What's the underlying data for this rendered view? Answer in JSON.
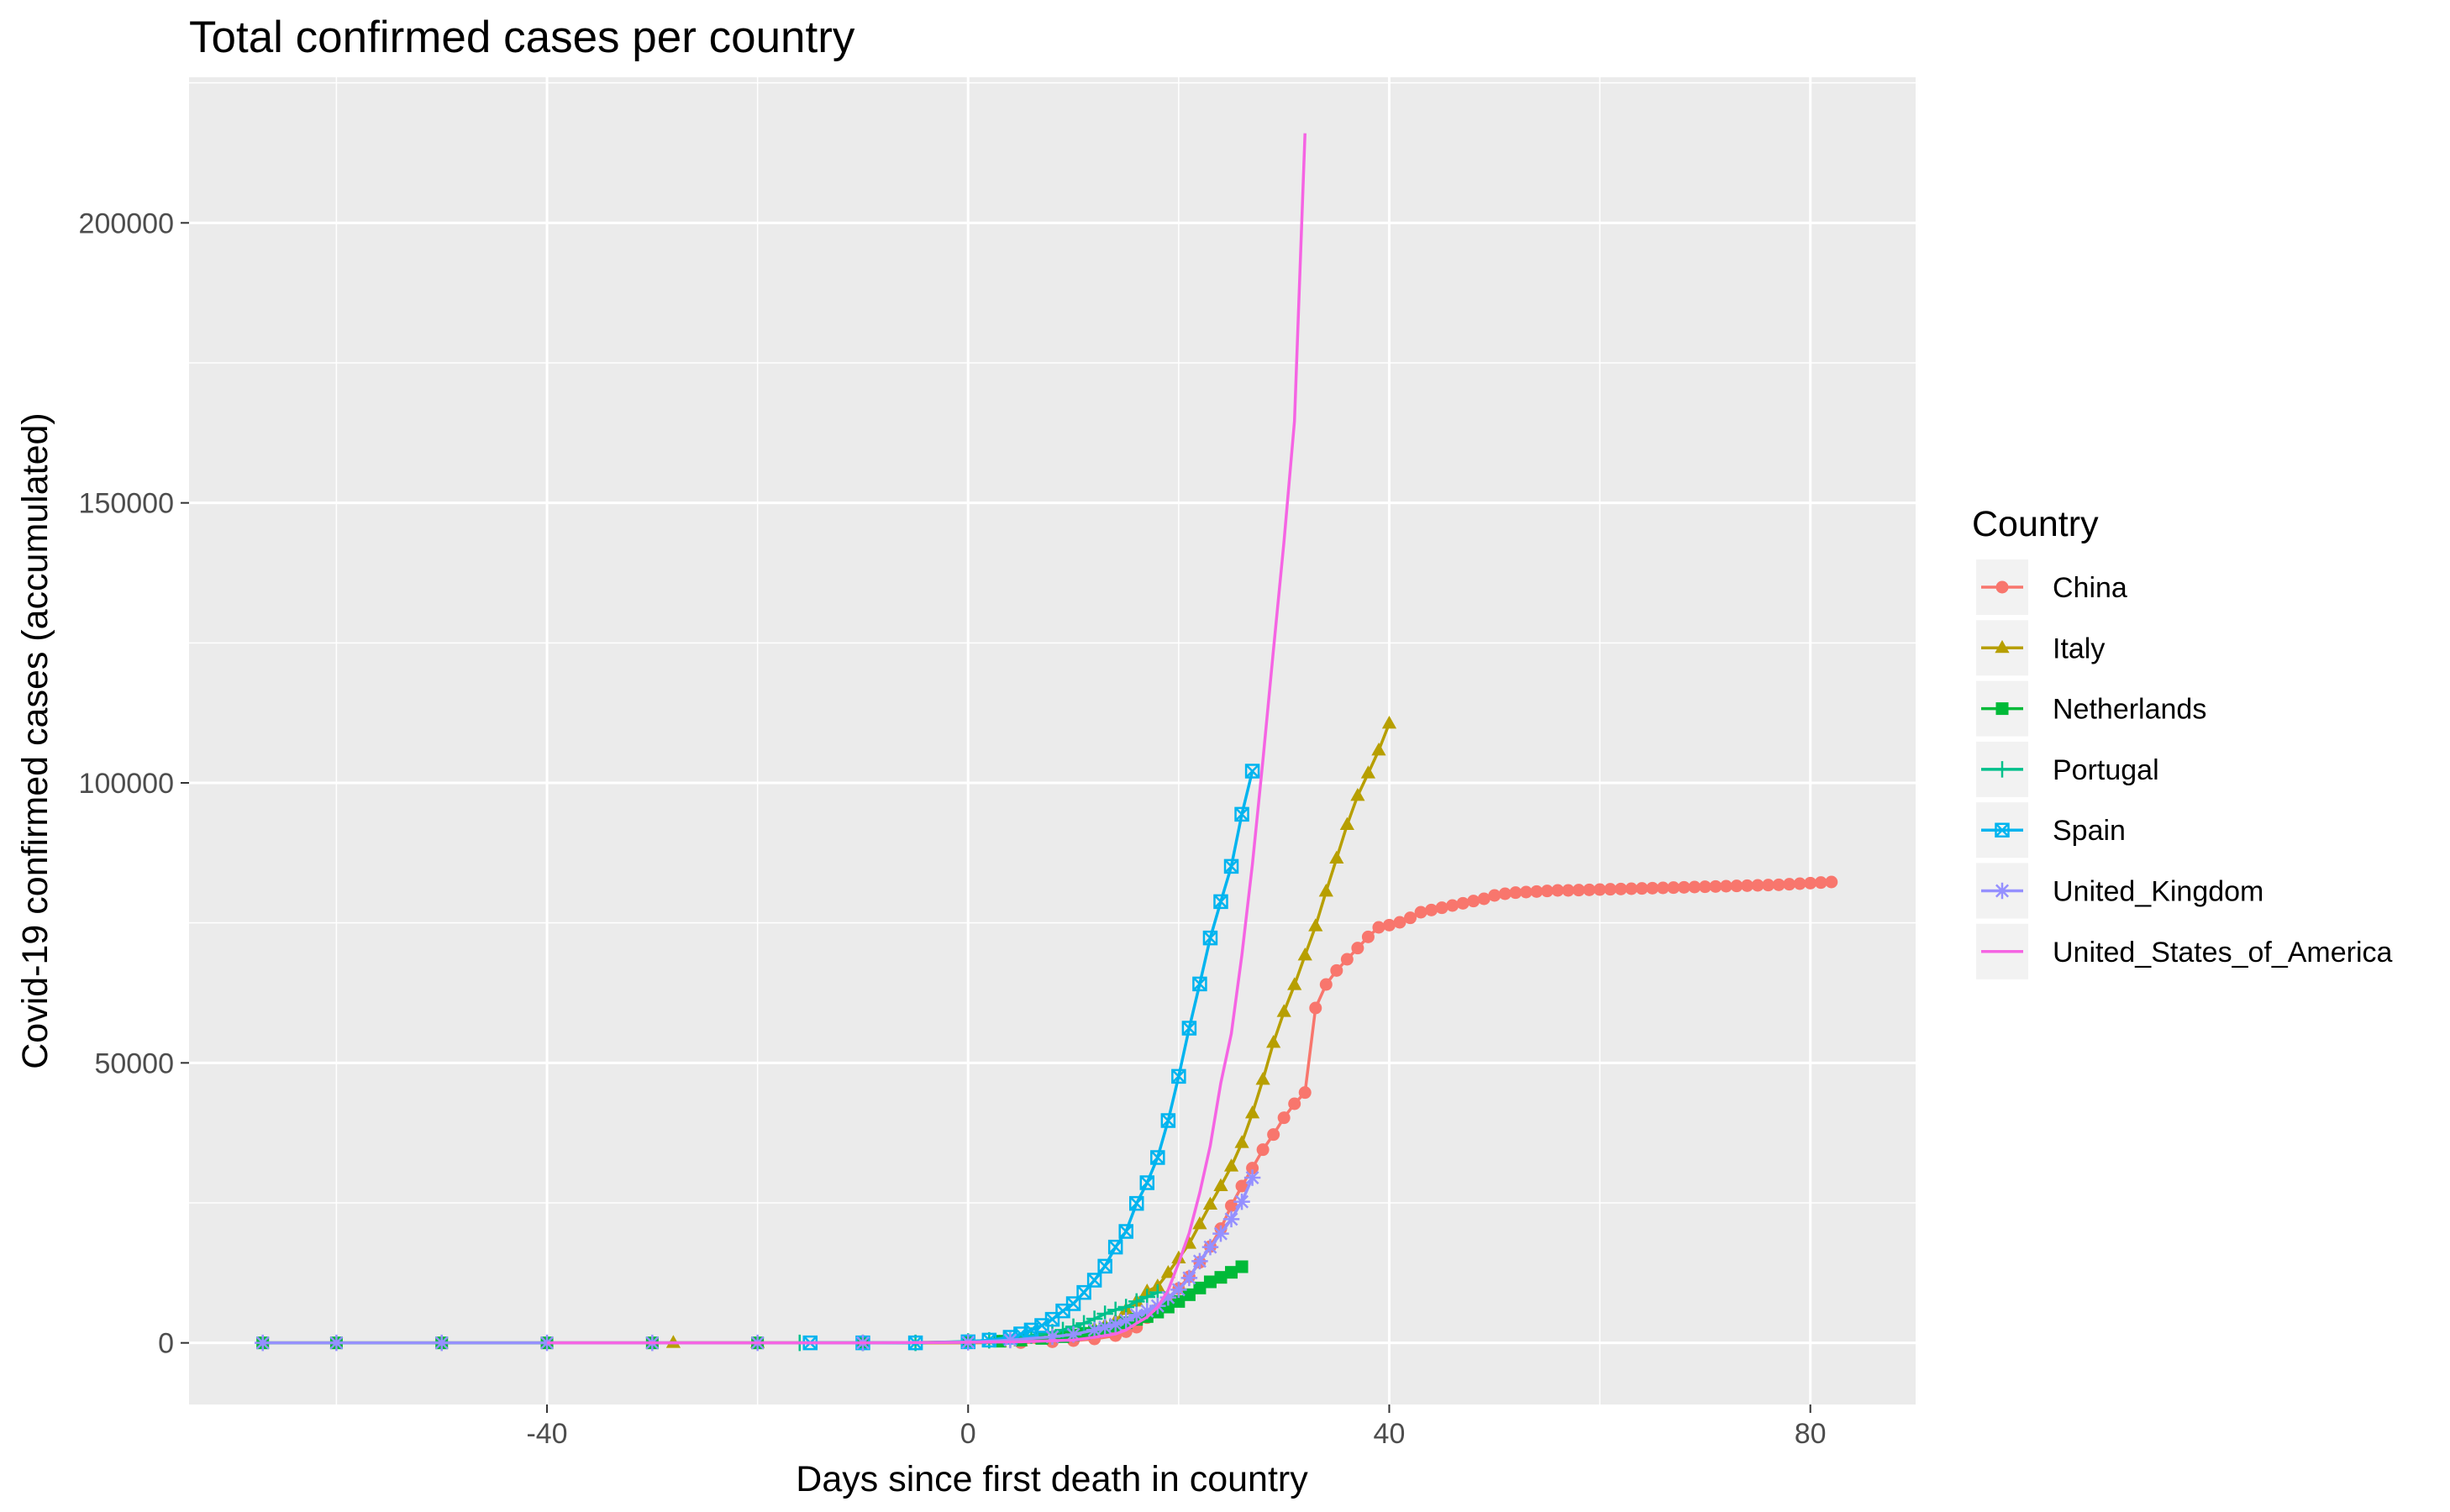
{
  "chart_data": {
    "type": "line",
    "title": "Total confirmed cases per country",
    "xlabel": "Days since first death in country",
    "ylabel": "Covid-19 confirmed cases (accumulated)",
    "xlim": [
      -74,
      90
    ],
    "ylim": [
      -11000,
      226000
    ],
    "x_ticks": [
      -40,
      0,
      40,
      80
    ],
    "y_ticks": [
      0,
      50000,
      100000,
      150000,
      200000
    ],
    "x_tick_labels": [
      "-40",
      "0",
      "40",
      "80"
    ],
    "y_tick_labels": [
      "0",
      "50000",
      "100000",
      "150000",
      "200000"
    ],
    "grid": true,
    "legend": {
      "title": "Country",
      "position": "right"
    },
    "series": [
      {
        "name": "China",
        "color": "#F8766D",
        "marker": "circle",
        "points": [
          [
            -67,
            0
          ],
          [
            -60,
            0
          ],
          [
            -50,
            0
          ],
          [
            -40,
            0
          ],
          [
            -30,
            0
          ],
          [
            -20,
            0
          ],
          [
            -10,
            0
          ],
          [
            0,
            1
          ],
          [
            5,
            50
          ],
          [
            8,
            200
          ],
          [
            10,
            400
          ],
          [
            12,
            700
          ],
          [
            14,
            1300
          ],
          [
            15,
            2000
          ],
          [
            16,
            2800
          ],
          [
            17,
            4500
          ],
          [
            18,
            6000
          ],
          [
            19,
            7700
          ],
          [
            20,
            9700
          ],
          [
            21,
            11800
          ],
          [
            22,
            14400
          ],
          [
            23,
            17200
          ],
          [
            24,
            20400
          ],
          [
            25,
            24500
          ],
          [
            26,
            28000
          ],
          [
            27,
            31200
          ],
          [
            28,
            34500
          ],
          [
            29,
            37200
          ],
          [
            30,
            40200
          ],
          [
            31,
            42700
          ],
          [
            32,
            44700
          ],
          [
            33,
            59800
          ],
          [
            34,
            64000
          ],
          [
            35,
            66500
          ],
          [
            36,
            68500
          ],
          [
            37,
            70500
          ],
          [
            38,
            72500
          ],
          [
            39,
            74200
          ],
          [
            40,
            74600
          ],
          [
            41,
            75100
          ],
          [
            42,
            75900
          ],
          [
            43,
            76900
          ],
          [
            44,
            77300
          ],
          [
            45,
            77700
          ],
          [
            46,
            78100
          ],
          [
            47,
            78500
          ],
          [
            48,
            78900
          ],
          [
            49,
            79300
          ],
          [
            50,
            79900
          ],
          [
            51,
            80200
          ],
          [
            52,
            80400
          ],
          [
            53,
            80500
          ],
          [
            54,
            80600
          ],
          [
            55,
            80700
          ],
          [
            56,
            80800
          ],
          [
            57,
            80800
          ],
          [
            58,
            80850
          ],
          [
            59,
            80900
          ],
          [
            60,
            80950
          ],
          [
            61,
            81000
          ],
          [
            62,
            81050
          ],
          [
            63,
            81100
          ],
          [
            64,
            81150
          ],
          [
            65,
            81200
          ],
          [
            66,
            81250
          ],
          [
            67,
            81300
          ],
          [
            68,
            81350
          ],
          [
            69,
            81400
          ],
          [
            70,
            81450
          ],
          [
            71,
            81500
          ],
          [
            72,
            81550
          ],
          [
            73,
            81600
          ],
          [
            74,
            81650
          ],
          [
            75,
            81700
          ],
          [
            76,
            81750
          ],
          [
            77,
            81800
          ],
          [
            78,
            81900
          ],
          [
            79,
            82000
          ],
          [
            80,
            82100
          ],
          [
            81,
            82200
          ],
          [
            82,
            82300
          ]
        ]
      },
      {
        "name": "Italy",
        "color": "#B79F00",
        "marker": "triangle",
        "points": [
          [
            -28,
            0
          ],
          [
            -20,
            0
          ],
          [
            -10,
            0
          ],
          [
            0,
            20
          ],
          [
            3,
            100
          ],
          [
            5,
            300
          ],
          [
            7,
            700
          ],
          [
            9,
            1200
          ],
          [
            11,
            1800
          ],
          [
            12,
            2500
          ],
          [
            13,
            3100
          ],
          [
            14,
            3900
          ],
          [
            15,
            5900
          ],
          [
            16,
            7400
          ],
          [
            17,
            9200
          ],
          [
            18,
            10100
          ],
          [
            19,
            12500
          ],
          [
            20,
            15100
          ],
          [
            21,
            17700
          ],
          [
            22,
            21200
          ],
          [
            23,
            24700
          ],
          [
            24,
            28000
          ],
          [
            25,
            31500
          ],
          [
            26,
            35700
          ],
          [
            27,
            41000
          ],
          [
            28,
            47000
          ],
          [
            29,
            53600
          ],
          [
            30,
            59100
          ],
          [
            31,
            63900
          ],
          [
            32,
            69200
          ],
          [
            33,
            74400
          ],
          [
            34,
            80600
          ],
          [
            35,
            86500
          ],
          [
            36,
            92500
          ],
          [
            37,
            97700
          ],
          [
            38,
            101700
          ],
          [
            39,
            105800
          ],
          [
            40,
            110600
          ]
        ]
      },
      {
        "name": "Netherlands",
        "color": "#00BA38",
        "marker": "square",
        "points": [
          [
            -67,
            0
          ],
          [
            -60,
            0
          ],
          [
            -50,
            0
          ],
          [
            -40,
            0
          ],
          [
            -30,
            0
          ],
          [
            -20,
            0
          ],
          [
            -10,
            0
          ],
          [
            0,
            150
          ],
          [
            3,
            300
          ],
          [
            5,
            500
          ],
          [
            7,
            800
          ],
          [
            9,
            1100
          ],
          [
            10,
            1400
          ],
          [
            11,
            1700
          ],
          [
            12,
            2000
          ],
          [
            13,
            2500
          ],
          [
            14,
            3000
          ],
          [
            15,
            3600
          ],
          [
            16,
            4200
          ],
          [
            17,
            4700
          ],
          [
            18,
            5500
          ],
          [
            19,
            6400
          ],
          [
            20,
            7400
          ],
          [
            21,
            8600
          ],
          [
            22,
            9800
          ],
          [
            23,
            10900
          ],
          [
            24,
            11700
          ],
          [
            25,
            12600
          ],
          [
            26,
            13600
          ]
        ]
      },
      {
        "name": "Portugal",
        "color": "#00C08B",
        "marker": "plus",
        "points": [
          [
            -16,
            0
          ],
          [
            -10,
            0
          ],
          [
            -5,
            0
          ],
          [
            0,
            250
          ],
          [
            2,
            450
          ],
          [
            4,
            800
          ],
          [
            6,
            1300
          ],
          [
            8,
            1900
          ],
          [
            9,
            2300
          ],
          [
            10,
            2900
          ],
          [
            11,
            3500
          ],
          [
            12,
            4300
          ],
          [
            13,
            5200
          ],
          [
            14,
            5900
          ],
          [
            15,
            6400
          ],
          [
            16,
            7400
          ],
          [
            17,
            8200
          ],
          [
            18,
            9000
          ]
        ]
      },
      {
        "name": "Spain",
        "color": "#00B4EF",
        "marker": "square-x",
        "points": [
          [
            -15,
            0
          ],
          [
            -10,
            0
          ],
          [
            -5,
            0
          ],
          [
            0,
            200
          ],
          [
            2,
            500
          ],
          [
            4,
            1000
          ],
          [
            5,
            1600
          ],
          [
            6,
            2300
          ],
          [
            7,
            3100
          ],
          [
            8,
            4200
          ],
          [
            9,
            5700
          ],
          [
            10,
            7000
          ],
          [
            11,
            9000
          ],
          [
            12,
            11200
          ],
          [
            13,
            13700
          ],
          [
            14,
            17100
          ],
          [
            15,
            19900
          ],
          [
            16,
            24900
          ],
          [
            17,
            28600
          ],
          [
            18,
            33100
          ],
          [
            19,
            39700
          ],
          [
            20,
            47600
          ],
          [
            21,
            56200
          ],
          [
            22,
            64100
          ],
          [
            23,
            72300
          ],
          [
            24,
            78800
          ],
          [
            25,
            85100
          ],
          [
            26,
            94400
          ],
          [
            27,
            102100
          ]
        ]
      },
      {
        "name": "United_Kingdom",
        "color": "#9590FF",
        "marker": "asterisk",
        "points": [
          [
            -67,
            0
          ],
          [
            -60,
            0
          ],
          [
            -50,
            0
          ],
          [
            -40,
            0
          ],
          [
            -30,
            0
          ],
          [
            -20,
            0
          ],
          [
            -10,
            0
          ],
          [
            0,
            100
          ],
          [
            4,
            500
          ],
          [
            8,
            1100
          ],
          [
            10,
            1500
          ],
          [
            12,
            2300
          ],
          [
            13,
            2800
          ],
          [
            14,
            3300
          ],
          [
            15,
            4000
          ],
          [
            16,
            5000
          ],
          [
            17,
            5700
          ],
          [
            18,
            6600
          ],
          [
            19,
            8100
          ],
          [
            20,
            9500
          ],
          [
            21,
            11600
          ],
          [
            22,
            14600
          ],
          [
            23,
            17100
          ],
          [
            24,
            19500
          ],
          [
            25,
            22100
          ],
          [
            26,
            25200
          ],
          [
            27,
            29500
          ]
        ]
      },
      {
        "name": "United_States_of_America",
        "color": "#F564E3",
        "marker": "none",
        "points": [
          [
            -40,
            0
          ],
          [
            -20,
            0
          ],
          [
            -10,
            0
          ],
          [
            0,
            100
          ],
          [
            5,
            200
          ],
          [
            10,
            500
          ],
          [
            12,
            1000
          ],
          [
            14,
            1600
          ],
          [
            15,
            2300
          ],
          [
            16,
            3500
          ],
          [
            17,
            4600
          ],
          [
            18,
            6400
          ],
          [
            19,
            9400
          ],
          [
            20,
            14300
          ],
          [
            21,
            19600
          ],
          [
            22,
            26800
          ],
          [
            23,
            35200
          ],
          [
            24,
            46400
          ],
          [
            25,
            55200
          ],
          [
            26,
            69200
          ],
          [
            27,
            85400
          ],
          [
            28,
            104000
          ],
          [
            29,
            123700
          ],
          [
            30,
            143000
          ],
          [
            31,
            164600
          ],
          [
            32,
            216000
          ]
        ]
      }
    ]
  }
}
